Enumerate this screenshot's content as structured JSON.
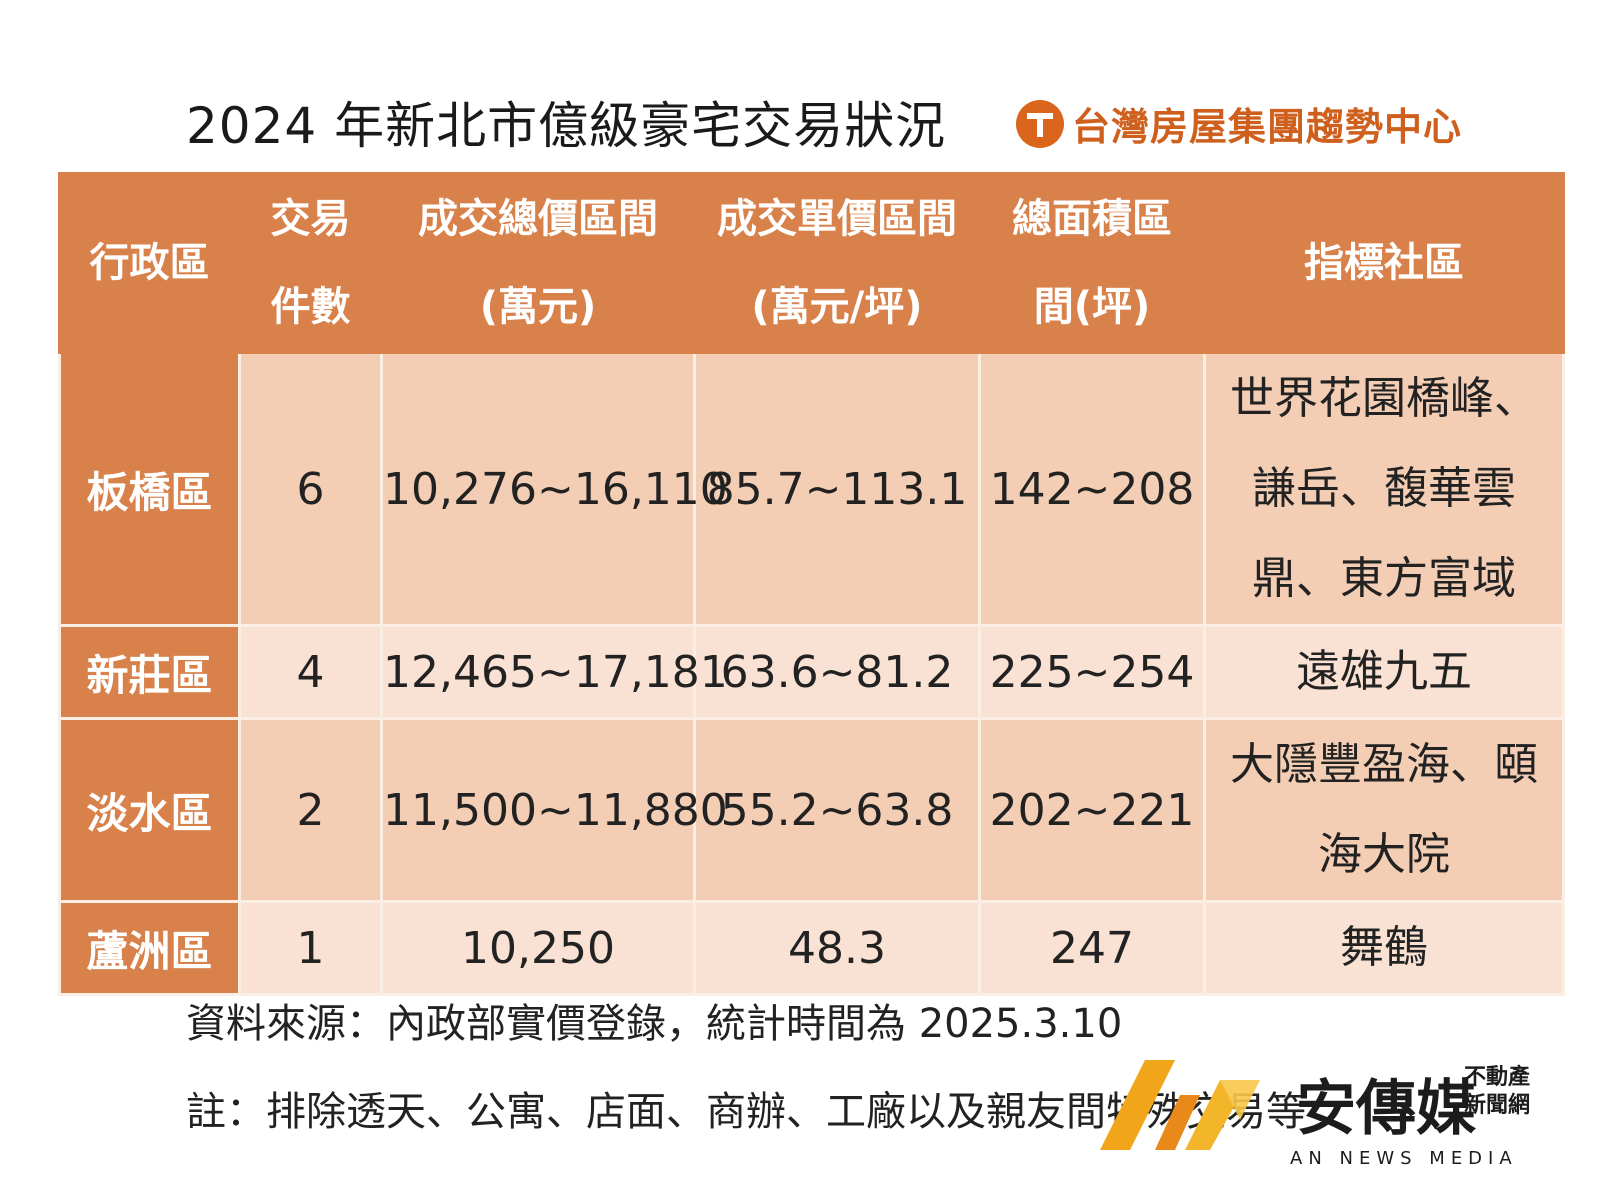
{
  "title": "2024 年新北市億級豪宅交易狀況",
  "brand": {
    "name": "台灣房屋集團趨勢中心",
    "icon": "taiwan-house-logo",
    "color": "#cf5f1d"
  },
  "table": {
    "headers": {
      "district": "行政區",
      "count": [
        "交易",
        "件數"
      ],
      "total_price": [
        "成交總價區間",
        "(萬元)"
      ],
      "unit_price": [
        "成交單價區間",
        "(萬元/坪)"
      ],
      "area": [
        "總面積區",
        "間(坪)"
      ],
      "community": "指標社區"
    },
    "rows": [
      {
        "district": "板橋區",
        "count": "6",
        "total_price": "10,276~16,110",
        "unit_price": "85.7~113.1",
        "area": "142~208",
        "community": [
          "世界花園橋峰、",
          "謙岳、馥華雲",
          "鼎、東方富域"
        ]
      },
      {
        "district": "新莊區",
        "count": "4",
        "total_price": "12,465~17,181",
        "unit_price": "63.6~81.2",
        "area": "225~254",
        "community": [
          "遠雄九五"
        ]
      },
      {
        "district": "淡水區",
        "count": "2",
        "total_price": "11,500~11,880",
        "unit_price": "55.2~63.8",
        "area": "202~221",
        "community": [
          "大隱豐盈海、頤",
          "海大院"
        ]
      },
      {
        "district": "蘆洲區",
        "count": "1",
        "total_price": "10,250",
        "unit_price": "48.3",
        "area": "247",
        "community": [
          "舞鶴"
        ]
      }
    ]
  },
  "notes": {
    "source": "資料來源：內政部實價登錄，統計時間為 2025.3.10",
    "remark": "註：排除透天、公寓、店面、商辦、工廠以及親友間特殊交易等"
  },
  "watermark": {
    "name": "安傳媒",
    "side": [
      "不動產",
      "新聞網"
    ],
    "english": "AN NEWS MEDIA"
  },
  "colors": {
    "header_bg": "#d8814a",
    "row_dark": "#f3cdb4",
    "row_light": "#f9e2d3"
  }
}
